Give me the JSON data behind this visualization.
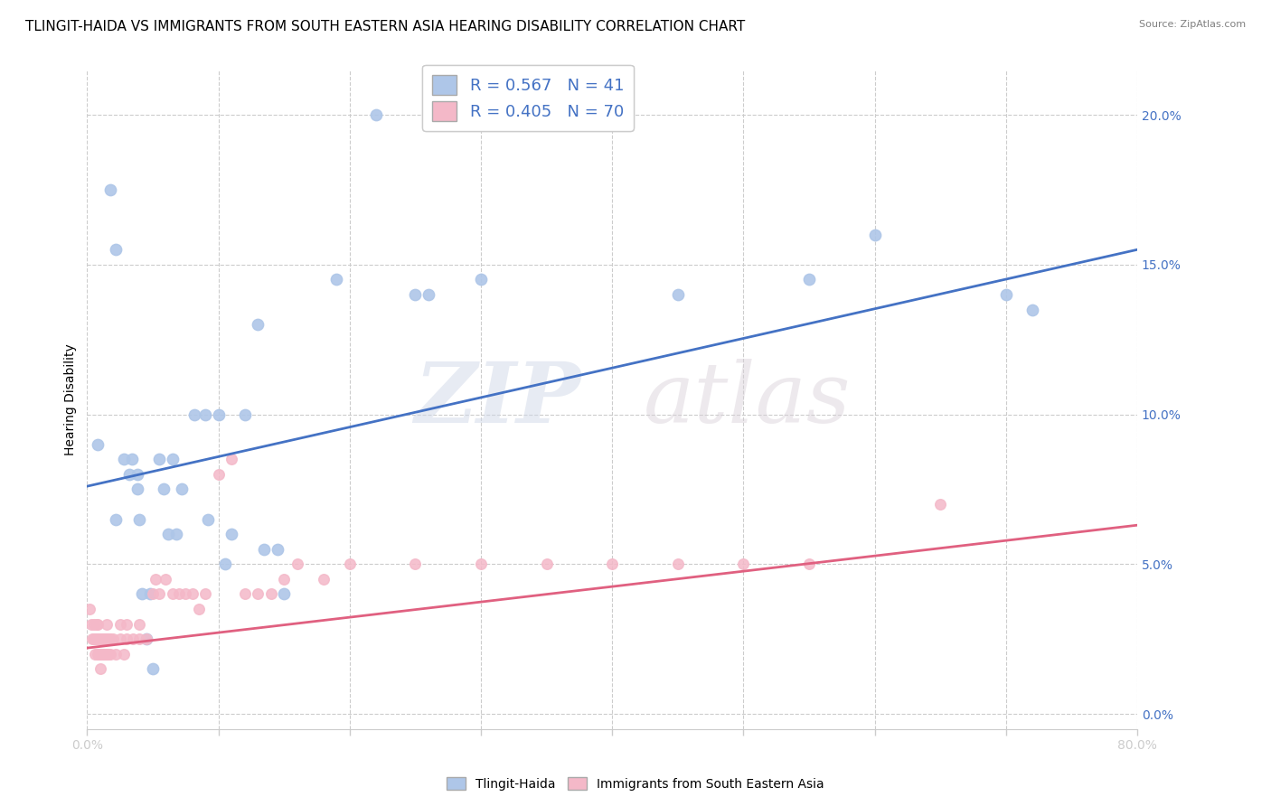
{
  "title": "TLINGIT-HAIDA VS IMMIGRANTS FROM SOUTH EASTERN ASIA HEARING DISABILITY CORRELATION CHART",
  "source": "Source: ZipAtlas.com",
  "ylabel_label": "Hearing Disability",
  "xlim": [
    0,
    0.8
  ],
  "ylim": [
    -0.005,
    0.215
  ],
  "legend_entries": [
    {
      "label": "R = 0.567   N = 41",
      "color": "#aec6e8"
    },
    {
      "label": "R = 0.405   N = 70",
      "color": "#f4b8c8"
    }
  ],
  "legend_bottom": [
    "Tlingit-Haida",
    "Immigrants from South Eastern Asia"
  ],
  "blue_scatter_x": [
    0.008,
    0.018,
    0.022,
    0.022,
    0.028,
    0.032,
    0.034,
    0.038,
    0.038,
    0.04,
    0.042,
    0.045,
    0.048,
    0.05,
    0.055,
    0.058,
    0.062,
    0.065,
    0.068,
    0.072,
    0.082,
    0.09,
    0.092,
    0.1,
    0.105,
    0.11,
    0.12,
    0.13,
    0.135,
    0.145,
    0.15,
    0.19,
    0.22,
    0.25,
    0.26,
    0.3,
    0.45,
    0.55,
    0.6,
    0.7,
    0.72
  ],
  "blue_scatter_y": [
    0.09,
    0.175,
    0.155,
    0.065,
    0.085,
    0.08,
    0.085,
    0.075,
    0.08,
    0.065,
    0.04,
    0.025,
    0.04,
    0.015,
    0.085,
    0.075,
    0.06,
    0.085,
    0.06,
    0.075,
    0.1,
    0.1,
    0.065,
    0.1,
    0.05,
    0.06,
    0.1,
    0.13,
    0.055,
    0.055,
    0.04,
    0.145,
    0.2,
    0.14,
    0.14,
    0.145,
    0.14,
    0.145,
    0.16,
    0.14,
    0.135
  ],
  "pink_scatter_x": [
    0.002,
    0.003,
    0.004,
    0.005,
    0.005,
    0.006,
    0.006,
    0.007,
    0.007,
    0.008,
    0.008,
    0.009,
    0.009,
    0.01,
    0.01,
    0.01,
    0.011,
    0.011,
    0.012,
    0.012,
    0.013,
    0.013,
    0.014,
    0.014,
    0.015,
    0.015,
    0.015,
    0.016,
    0.016,
    0.017,
    0.018,
    0.018,
    0.02,
    0.022,
    0.025,
    0.025,
    0.028,
    0.03,
    0.03,
    0.035,
    0.04,
    0.04,
    0.045,
    0.05,
    0.052,
    0.055,
    0.06,
    0.065,
    0.07,
    0.075,
    0.08,
    0.085,
    0.09,
    0.1,
    0.11,
    0.12,
    0.13,
    0.14,
    0.15,
    0.16,
    0.18,
    0.2,
    0.25,
    0.3,
    0.35,
    0.4,
    0.45,
    0.5,
    0.55,
    0.65
  ],
  "pink_scatter_y": [
    0.035,
    0.03,
    0.025,
    0.03,
    0.025,
    0.025,
    0.02,
    0.03,
    0.025,
    0.03,
    0.02,
    0.025,
    0.02,
    0.025,
    0.02,
    0.015,
    0.025,
    0.02,
    0.025,
    0.02,
    0.025,
    0.02,
    0.025,
    0.02,
    0.025,
    0.03,
    0.02,
    0.025,
    0.02,
    0.025,
    0.025,
    0.02,
    0.025,
    0.02,
    0.03,
    0.025,
    0.02,
    0.025,
    0.03,
    0.025,
    0.03,
    0.025,
    0.025,
    0.04,
    0.045,
    0.04,
    0.045,
    0.04,
    0.04,
    0.04,
    0.04,
    0.035,
    0.04,
    0.08,
    0.085,
    0.04,
    0.04,
    0.04,
    0.045,
    0.05,
    0.045,
    0.05,
    0.05,
    0.05,
    0.05,
    0.05,
    0.05,
    0.05,
    0.05,
    0.07
  ],
  "blue_line_x": [
    0.0,
    0.8
  ],
  "blue_line_y": [
    0.076,
    0.155
  ],
  "pink_line_x": [
    0.0,
    0.8
  ],
  "pink_line_y": [
    0.022,
    0.063
  ],
  "scatter_blue_color": "#aec6e8",
  "scatter_pink_color": "#f4b8c8",
  "line_blue_color": "#4472c4",
  "line_pink_color": "#e06080",
  "grid_color": "#cccccc",
  "background_color": "#ffffff",
  "watermark_zip": "ZIP",
  "watermark_atlas": "atlas",
  "title_fontsize": 11,
  "axis_label_fontsize": 10,
  "tick_fontsize": 10,
  "ytick_vals": [
    0.0,
    0.05,
    0.1,
    0.15,
    0.2
  ],
  "ytick_labels": [
    "0.0%",
    "5.0%",
    "10.0%",
    "15.0%",
    "20.0%"
  ],
  "xtick_vals": [
    0.0,
    0.1,
    0.2,
    0.3,
    0.4,
    0.5,
    0.6,
    0.7,
    0.8
  ],
  "xtick_labels_bottom": [
    "0.0%",
    "",
    "",
    "",
    "",
    "",
    "",
    "",
    "80.0%"
  ]
}
